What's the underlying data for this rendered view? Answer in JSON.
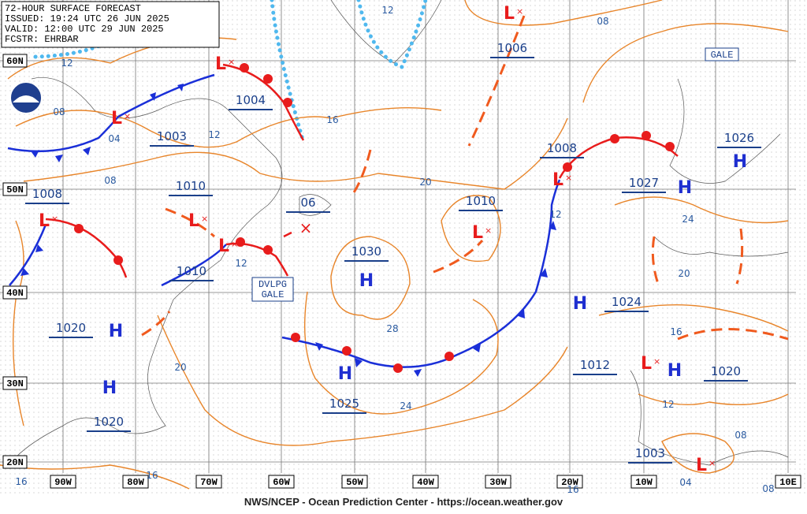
{
  "header": {
    "title": "72-HOUR SURFACE FORECAST",
    "issued": "ISSUED: 19:24 UTC 26 JUN 2025",
    "valid": "VALID: 12:00 UTC 29 JUN 2025",
    "forecaster": "FCSTR: EHRBAR"
  },
  "footer": "NWS/NCEP - Ocean Prediction Center - https://ocean.weather.gov",
  "lat_labels": [
    "60N",
    "50N",
    "40N",
    "30N",
    "20N"
  ],
  "lon_labels": [
    "90W",
    "80W",
    "70W",
    "60W",
    "50W",
    "40W",
    "30W",
    "20W",
    "10W",
    "10E"
  ],
  "pressure_labels": [
    "1006",
    "1004",
    "1003",
    "1008",
    "1026",
    "1010",
    "1008",
    "1027",
    "1010",
    "06",
    "1030",
    "1010",
    "1024",
    "1020",
    "1012",
    "1020",
    "1025",
    "1020",
    "1003"
  ],
  "high_symbol": "H",
  "low_symbol": "L",
  "isobar_labels": [
    "12",
    "08",
    "12",
    "08",
    "04",
    "16",
    "12",
    "08",
    "20",
    "12",
    "12",
    "24",
    "20",
    "16",
    "28",
    "20",
    "24",
    "12",
    "08",
    "16",
    "16",
    "16",
    "04",
    "08"
  ],
  "warnings": {
    "gale": "GALE",
    "dvlpg": "DVLPG",
    "dvlpg_gale": "GALE"
  }
}
